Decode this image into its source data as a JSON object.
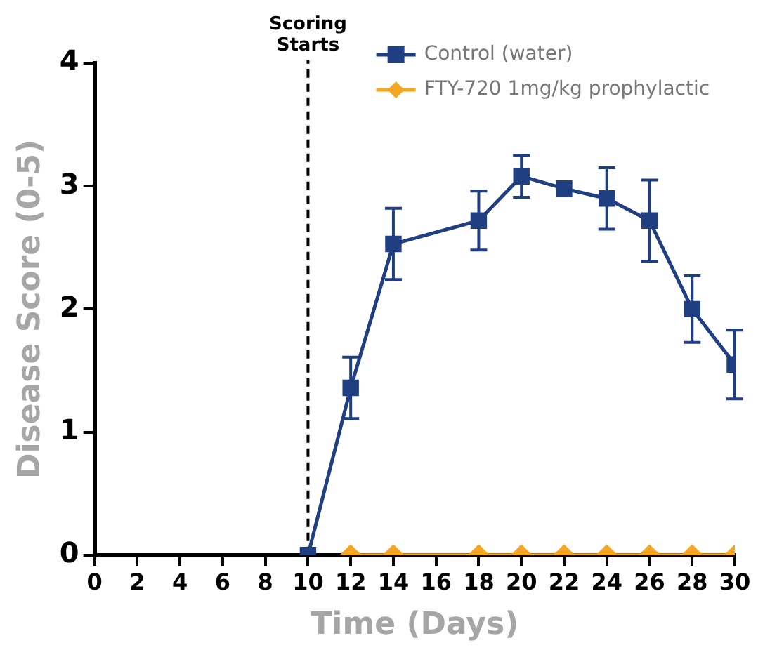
{
  "chart_data": {
    "type": "line",
    "xlabel": "Time (Days)",
    "ylabel": "Disease Score (0-5)",
    "x": [
      10,
      12,
      14,
      18,
      20,
      22,
      24,
      26,
      28,
      30
    ],
    "series": [
      {
        "name": "Control (water)",
        "color": "#1f3f82",
        "marker": "square",
        "values": [
          0,
          1.36,
          2.53,
          2.72,
          3.08,
          2.98,
          2.9,
          2.72,
          2.0,
          1.55
        ],
        "errors": [
          null,
          0.25,
          0.29,
          0.24,
          0.17,
          null,
          0.25,
          0.33,
          0.27,
          0.28
        ]
      },
      {
        "name": "FTY-720 1mg/kg prophylactic",
        "color": "#f5a623",
        "marker": "diamond",
        "values": [
          null,
          0,
          0,
          0,
          0,
          0,
          0,
          0,
          0,
          0
        ]
      }
    ],
    "xlim": [
      0,
      30
    ],
    "xticks": [
      0,
      2,
      4,
      6,
      8,
      10,
      12,
      14,
      16,
      18,
      20,
      22,
      24,
      26,
      28,
      30
    ],
    "ylim": [
      0,
      4
    ],
    "yticks": [
      0,
      1,
      2,
      3,
      4
    ],
    "ref_lines": [
      {
        "axis": "x",
        "value": 10,
        "label": "Scoring Starts",
        "color": "#000000",
        "line_style": "dashed"
      }
    ],
    "grid": false,
    "legend": "top right",
    "line_style": "solid"
  }
}
